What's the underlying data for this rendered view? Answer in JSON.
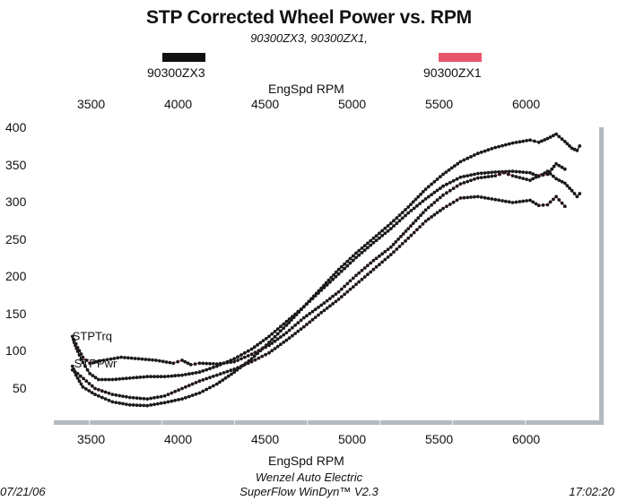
{
  "chart_data": {
    "type": "line",
    "title": "STP Corrected Wheel Power vs. RPM",
    "subtitle": "90300ZX3, 90300ZX1,",
    "xlabel": "EngSpd  RPM",
    "xlabel_top": "EngSpd  RPM",
    "ylabel": "",
    "xlim": [
      3250,
      6500
    ],
    "ylim": [
      0,
      410
    ],
    "x_ticks": [
      3500,
      4000,
      4500,
      5000,
      5500,
      6000
    ],
    "y_ticks": [
      400,
      350,
      300,
      250,
      200,
      150,
      100,
      50
    ],
    "grid": false,
    "legend": [
      {
        "name": "90300ZX3",
        "color": "#111111"
      },
      {
        "name": "90300ZX1",
        "color": "#e8566a"
      }
    ],
    "legend_placement": "top",
    "annotations": [
      {
        "text": "STPTrq",
        "x": 3380,
        "y": 120
      },
      {
        "text": "STPPwr",
        "x": 3390,
        "y": 83
      }
    ],
    "series": [
      {
        "name": "90300ZX3 STPPwr",
        "run": "90300ZX3",
        "line_color": "#111111",
        "points": [
          [
            3370,
            80
          ],
          [
            3390,
            68
          ],
          [
            3430,
            52
          ],
          [
            3500,
            42
          ],
          [
            3600,
            32
          ],
          [
            3700,
            28
          ],
          [
            3800,
            27
          ],
          [
            3900,
            31
          ],
          [
            4000,
            36
          ],
          [
            4100,
            44
          ],
          [
            4200,
            56
          ],
          [
            4300,
            72
          ],
          [
            4400,
            90
          ],
          [
            4500,
            112
          ],
          [
            4600,
            135
          ],
          [
            4700,
            160
          ],
          [
            4800,
            185
          ],
          [
            4900,
            210
          ],
          [
            5000,
            232
          ],
          [
            5100,
            252
          ],
          [
            5200,
            272
          ],
          [
            5300,
            294
          ],
          [
            5400,
            318
          ],
          [
            5500,
            338
          ],
          [
            5600,
            355
          ],
          [
            5700,
            366
          ],
          [
            5800,
            374
          ],
          [
            5900,
            380
          ],
          [
            6000,
            384
          ],
          [
            6050,
            381
          ],
          [
            6100,
            386
          ],
          [
            6150,
            392
          ],
          [
            6200,
            382
          ],
          [
            6240,
            373
          ],
          [
            6270,
            370
          ],
          [
            6285,
            376
          ]
        ]
      },
      {
        "name": "90300ZX3 STPTrq",
        "run": "90300ZX3",
        "line_color": "#111111",
        "points": [
          [
            3370,
            120
          ],
          [
            3380,
            112
          ],
          [
            3400,
            100
          ],
          [
            3430,
            85
          ],
          [
            3470,
            70
          ],
          [
            3520,
            62
          ],
          [
            3600,
            62
          ],
          [
            3700,
            64
          ],
          [
            3800,
            66
          ],
          [
            3900,
            66
          ],
          [
            4000,
            68
          ],
          [
            4100,
            72
          ],
          [
            4200,
            80
          ],
          [
            4300,
            90
          ],
          [
            4400,
            103
          ],
          [
            4500,
            120
          ],
          [
            4600,
            140
          ],
          [
            4700,
            160
          ],
          [
            4800,
            182
          ],
          [
            4900,
            204
          ],
          [
            5000,
            226
          ],
          [
            5100,
            246
          ],
          [
            5200,
            265
          ],
          [
            5300,
            286
          ],
          [
            5400,
            305
          ],
          [
            5500,
            322
          ],
          [
            5600,
            334
          ],
          [
            5700,
            339
          ],
          [
            5800,
            341
          ],
          [
            5900,
            342
          ],
          [
            6000,
            340
          ],
          [
            6050,
            335
          ],
          [
            6100,
            342
          ],
          [
            6150,
            332
          ],
          [
            6200,
            326
          ],
          [
            6240,
            316
          ],
          [
            6270,
            308
          ],
          [
            6285,
            312
          ]
        ]
      },
      {
        "name": "90300ZX1 STPTrq",
        "run": "90300ZX1",
        "line_color": "#e8566a",
        "points": [
          [
            3380,
            115
          ],
          [
            3400,
            105
          ],
          [
            3430,
            92
          ],
          [
            3470,
            84
          ],
          [
            3550,
            88
          ],
          [
            3650,
            92
          ],
          [
            3750,
            90
          ],
          [
            3850,
            88
          ],
          [
            3950,
            84
          ],
          [
            4000,
            88
          ],
          [
            4050,
            82
          ],
          [
            4100,
            84
          ],
          [
            4200,
            83
          ],
          [
            4300,
            86
          ],
          [
            4400,
            96
          ],
          [
            4500,
            108
          ],
          [
            4600,
            125
          ],
          [
            4700,
            145
          ],
          [
            4800,
            162
          ],
          [
            4900,
            180
          ],
          [
            5000,
            202
          ],
          [
            5100,
            222
          ],
          [
            5200,
            240
          ],
          [
            5300,
            265
          ],
          [
            5400,
            290
          ],
          [
            5500,
            310
          ],
          [
            5600,
            325
          ],
          [
            5700,
            333
          ],
          [
            5800,
            336
          ],
          [
            5850,
            340
          ],
          [
            5900,
            336
          ],
          [
            6000,
            330
          ],
          [
            6050,
            336
          ],
          [
            6100,
            338
          ],
          [
            6150,
            352
          ],
          [
            6200,
            345
          ]
        ]
      },
      {
        "name": "90300ZX1 STPPwr",
        "run": "90300ZX1",
        "line_color": "#e8566a",
        "points": [
          [
            3370,
            75
          ],
          [
            3400,
            70
          ],
          [
            3450,
            60
          ],
          [
            3500,
            50
          ],
          [
            3600,
            42
          ],
          [
            3700,
            38
          ],
          [
            3800,
            36
          ],
          [
            3900,
            40
          ],
          [
            4000,
            50
          ],
          [
            4100,
            60
          ],
          [
            4200,
            68
          ],
          [
            4300,
            76
          ],
          [
            4400,
            86
          ],
          [
            4500,
            98
          ],
          [
            4600,
            115
          ],
          [
            4700,
            133
          ],
          [
            4800,
            152
          ],
          [
            4900,
            170
          ],
          [
            5000,
            190
          ],
          [
            5100,
            210
          ],
          [
            5200,
            230
          ],
          [
            5300,
            252
          ],
          [
            5400,
            275
          ],
          [
            5500,
            292
          ],
          [
            5600,
            306
          ],
          [
            5700,
            308
          ],
          [
            5800,
            304
          ],
          [
            5900,
            300
          ],
          [
            6000,
            303
          ],
          [
            6050,
            296
          ],
          [
            6100,
            297
          ],
          [
            6150,
            308
          ],
          [
            6200,
            295
          ]
        ]
      }
    ]
  },
  "footer": {
    "date": "07/21/06",
    "company": "Wenzel Auto Electric",
    "software": "SuperFlow WinDyn™ V2.3",
    "time": "17:02:20"
  }
}
